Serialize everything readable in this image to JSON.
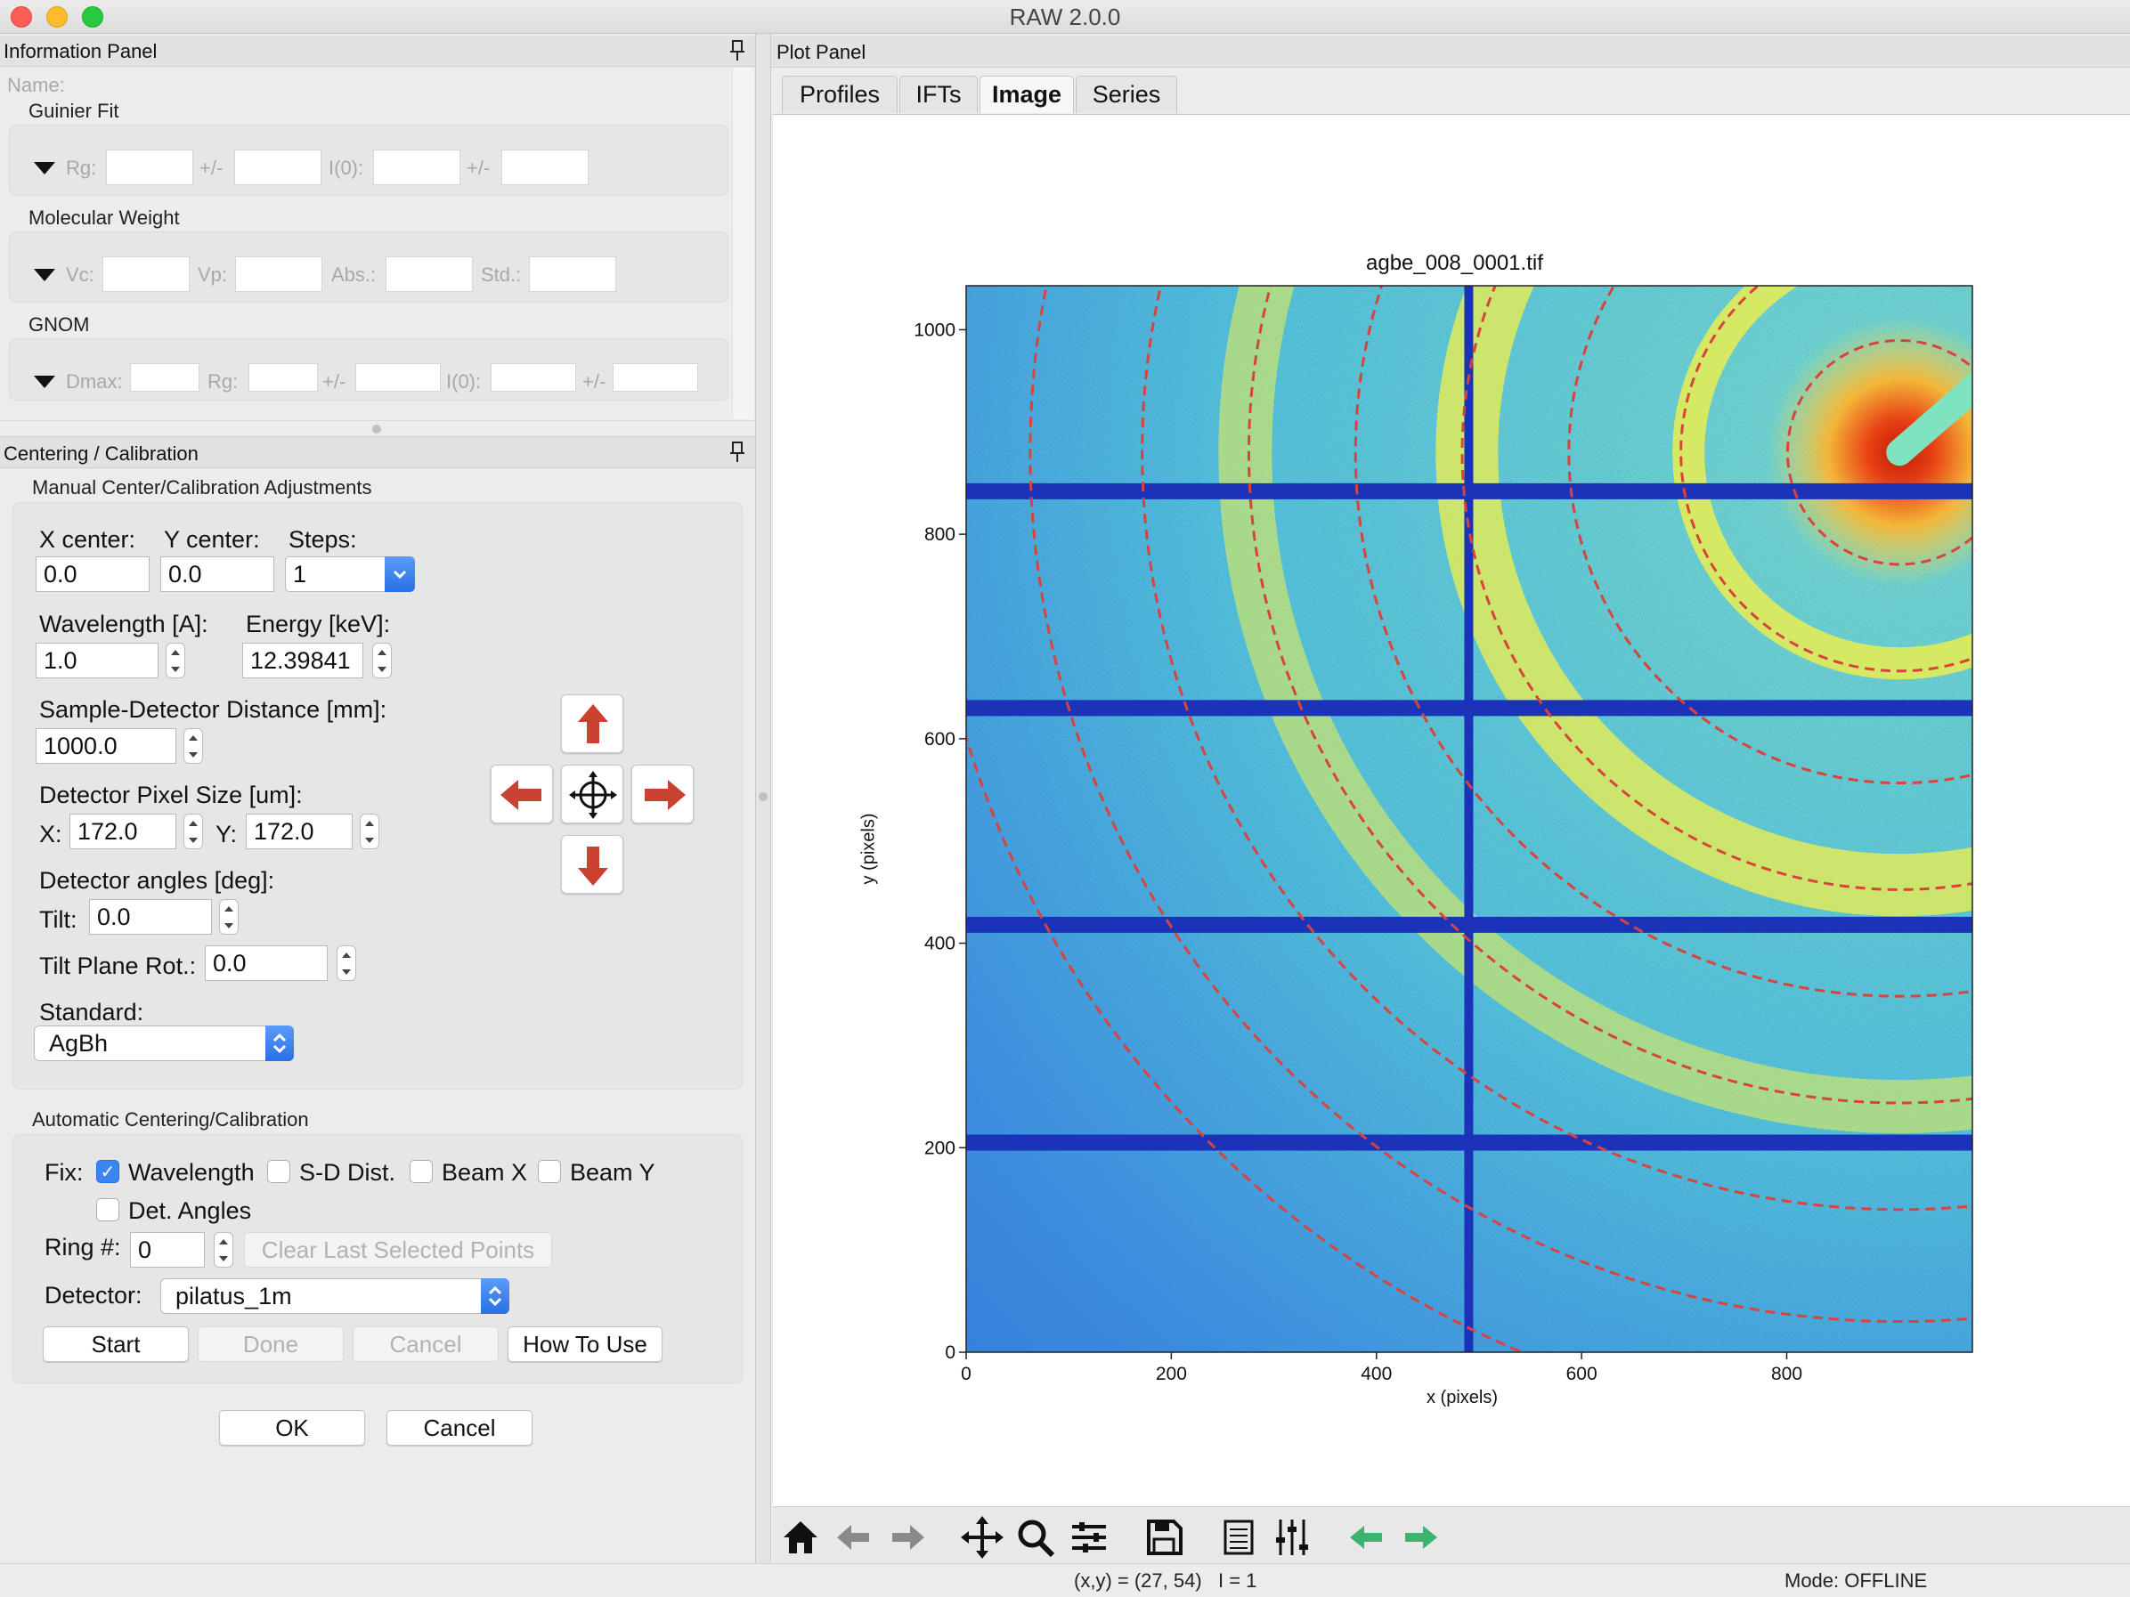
{
  "window": {
    "title": "RAW 2.0.0"
  },
  "info_panel": {
    "title": "Information Panel",
    "name_label": "Name:",
    "guinier": {
      "title": "Guinier Fit",
      "rg": "Rg:",
      "pm": "+/-",
      "i0": "I(0):"
    },
    "mw": {
      "title": "Molecular Weight",
      "vc": "Vc:",
      "vp": "Vp:",
      "abs": "Abs.:",
      "std": "Std.:"
    },
    "gnom": {
      "title": "GNOM",
      "dmax": "Dmax:",
      "rg": "Rg:",
      "pm": "+/-",
      "i0": "I(0):"
    }
  },
  "centering": {
    "title": "Centering / Calibration",
    "manual": {
      "title": "Manual Center/Calibration Adjustments",
      "x_center_label": "X center:",
      "x_center": "0.0",
      "y_center_label": "Y center:",
      "y_center": "0.0",
      "steps_label": "Steps:",
      "steps": "1",
      "wavelength_label": "Wavelength [A]:",
      "wavelength": "1.0",
      "energy_label": "Energy [keV]:",
      "energy": "12.39841",
      "distance_label": "Sample-Detector Distance [mm]:",
      "distance": "1000.0",
      "pixel_label": "Detector Pixel Size [um]:",
      "px_x_label": "X:",
      "px_x": "172.0",
      "px_y_label": "Y:",
      "px_y": "172.0",
      "angles_label": "Detector angles [deg]:",
      "tilt_label": "Tilt:",
      "tilt": "0.0",
      "tilt_rot_label": "Tilt Plane Rot.:",
      "tilt_rot": "0.0",
      "standard_label": "Standard:",
      "standard": "AgBh"
    },
    "auto": {
      "title": "Automatic Centering/Calibration",
      "fix_label": "Fix:",
      "fix_wavelength": "Wavelength",
      "fix_sd": "S-D Dist.",
      "fix_beamx": "Beam X",
      "fix_beamy": "Beam Y",
      "fix_angles": "Det. Angles",
      "ring_label": "Ring #:",
      "ring": "0",
      "clear_button": "Clear Last Selected Points",
      "detector_label": "Detector:",
      "detector": "pilatus_1m",
      "start": "Start",
      "done": "Done",
      "cancel": "Cancel",
      "how_to": "How To Use"
    },
    "ok": "OK",
    "cancel": "Cancel"
  },
  "plot_panel": {
    "title": "Plot Panel",
    "tabs": [
      "Profiles",
      "IFTs",
      "Image",
      "Series"
    ],
    "active_tab": "Image"
  },
  "chart_data": {
    "type": "heatmap",
    "title": "agbe_008_0001.tif",
    "xlabel": "x (pixels)",
    "ylabel": "y (pixels)",
    "xlim": [
      0,
      981
    ],
    "ylim": [
      0,
      1043
    ],
    "xticks": [
      0,
      200,
      400,
      600,
      800
    ],
    "yticks": [
      0,
      200,
      400,
      600,
      800,
      1000
    ],
    "beam_center": [
      910,
      880
    ],
    "calibration_rings_radius": [
      105,
      205,
      310,
      410,
      510,
      610,
      710,
      815,
      915
    ],
    "module_gaps_x": [
      490
    ],
    "module_gaps_y": [
      205,
      418,
      630,
      842
    ],
    "colors": {
      "ring": "#d9433b",
      "gap": "#1a33b8",
      "bg_low": "#2f6fd8",
      "bg_high": "#7be0c8",
      "ring_band": "#f1f04a",
      "beam": "#e02010"
    }
  },
  "toolbar": {
    "icons": [
      "home-icon",
      "back-arrow-icon",
      "forward-arrow-icon",
      "pan-icon",
      "zoom-icon",
      "configure-subplots-icon",
      "save-icon",
      "list-icon",
      "sliders-icon",
      "green-back-icon",
      "green-forward-icon"
    ]
  },
  "status": {
    "coords": "(x,y) = (27, 54)   I = 1",
    "mode": "Mode: OFFLINE"
  }
}
